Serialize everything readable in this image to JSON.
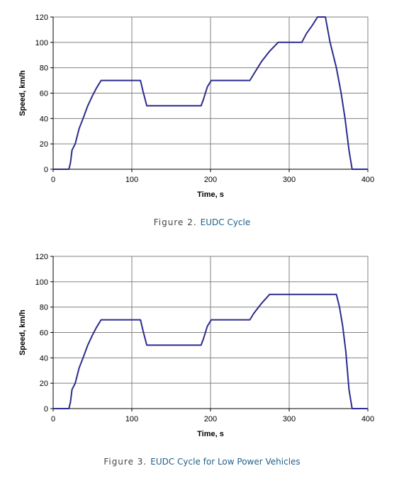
{
  "chart_data": [
    {
      "type": "line",
      "caption_prefix": "Figure 2.",
      "caption_title": "EUDC Cycle",
      "xlabel": "Time, s",
      "ylabel": "Speed, km/h",
      "xlim": [
        0,
        400
      ],
      "ylim": [
        0,
        120
      ],
      "xticks": [
        "0",
        "100",
        "200",
        "300",
        "400"
      ],
      "yticks": [
        "0",
        "20",
        "40",
        "60",
        "80",
        "100",
        "120"
      ],
      "grid": true,
      "line_color": "#2b2b90",
      "x": [
        0,
        20,
        22,
        24,
        28,
        33,
        38,
        44,
        50,
        55,
        61,
        111,
        114,
        119,
        188,
        191,
        196,
        201,
        250,
        255,
        265,
        275,
        286,
        316,
        322,
        330,
        336,
        346,
        352,
        360,
        366,
        371,
        376,
        380,
        400
      ],
      "y": [
        0,
        0,
        5,
        15,
        20,
        32,
        40,
        50,
        58,
        64,
        70,
        70,
        62,
        50,
        50,
        55,
        65,
        70,
        70,
        75,
        85,
        93,
        100,
        100,
        107,
        114,
        120,
        120,
        100,
        80,
        60,
        40,
        15,
        0,
        0
      ]
    },
    {
      "type": "line",
      "caption_prefix": "Figure 3.",
      "caption_title": "EUDC Cycle for Low Power Vehicles",
      "xlabel": "Time, s",
      "ylabel": "Speed, km/h",
      "xlim": [
        0,
        400
      ],
      "ylim": [
        0,
        120
      ],
      "xticks": [
        "0",
        "100",
        "200",
        "300",
        "400"
      ],
      "yticks": [
        "0",
        "20",
        "40",
        "60",
        "80",
        "100",
        "120"
      ],
      "grid": true,
      "line_color": "#2b2b90",
      "x": [
        0,
        20,
        22,
        24,
        28,
        33,
        38,
        44,
        50,
        55,
        61,
        111,
        114,
        119,
        188,
        191,
        196,
        201,
        250,
        255,
        265,
        275,
        360,
        364,
        368,
        372,
        376,
        380,
        400
      ],
      "y": [
        0,
        0,
        5,
        15,
        20,
        32,
        40,
        50,
        58,
        64,
        70,
        70,
        62,
        50,
        50,
        55,
        65,
        70,
        70,
        75,
        83,
        90,
        90,
        80,
        65,
        45,
        15,
        0,
        0
      ]
    }
  ]
}
